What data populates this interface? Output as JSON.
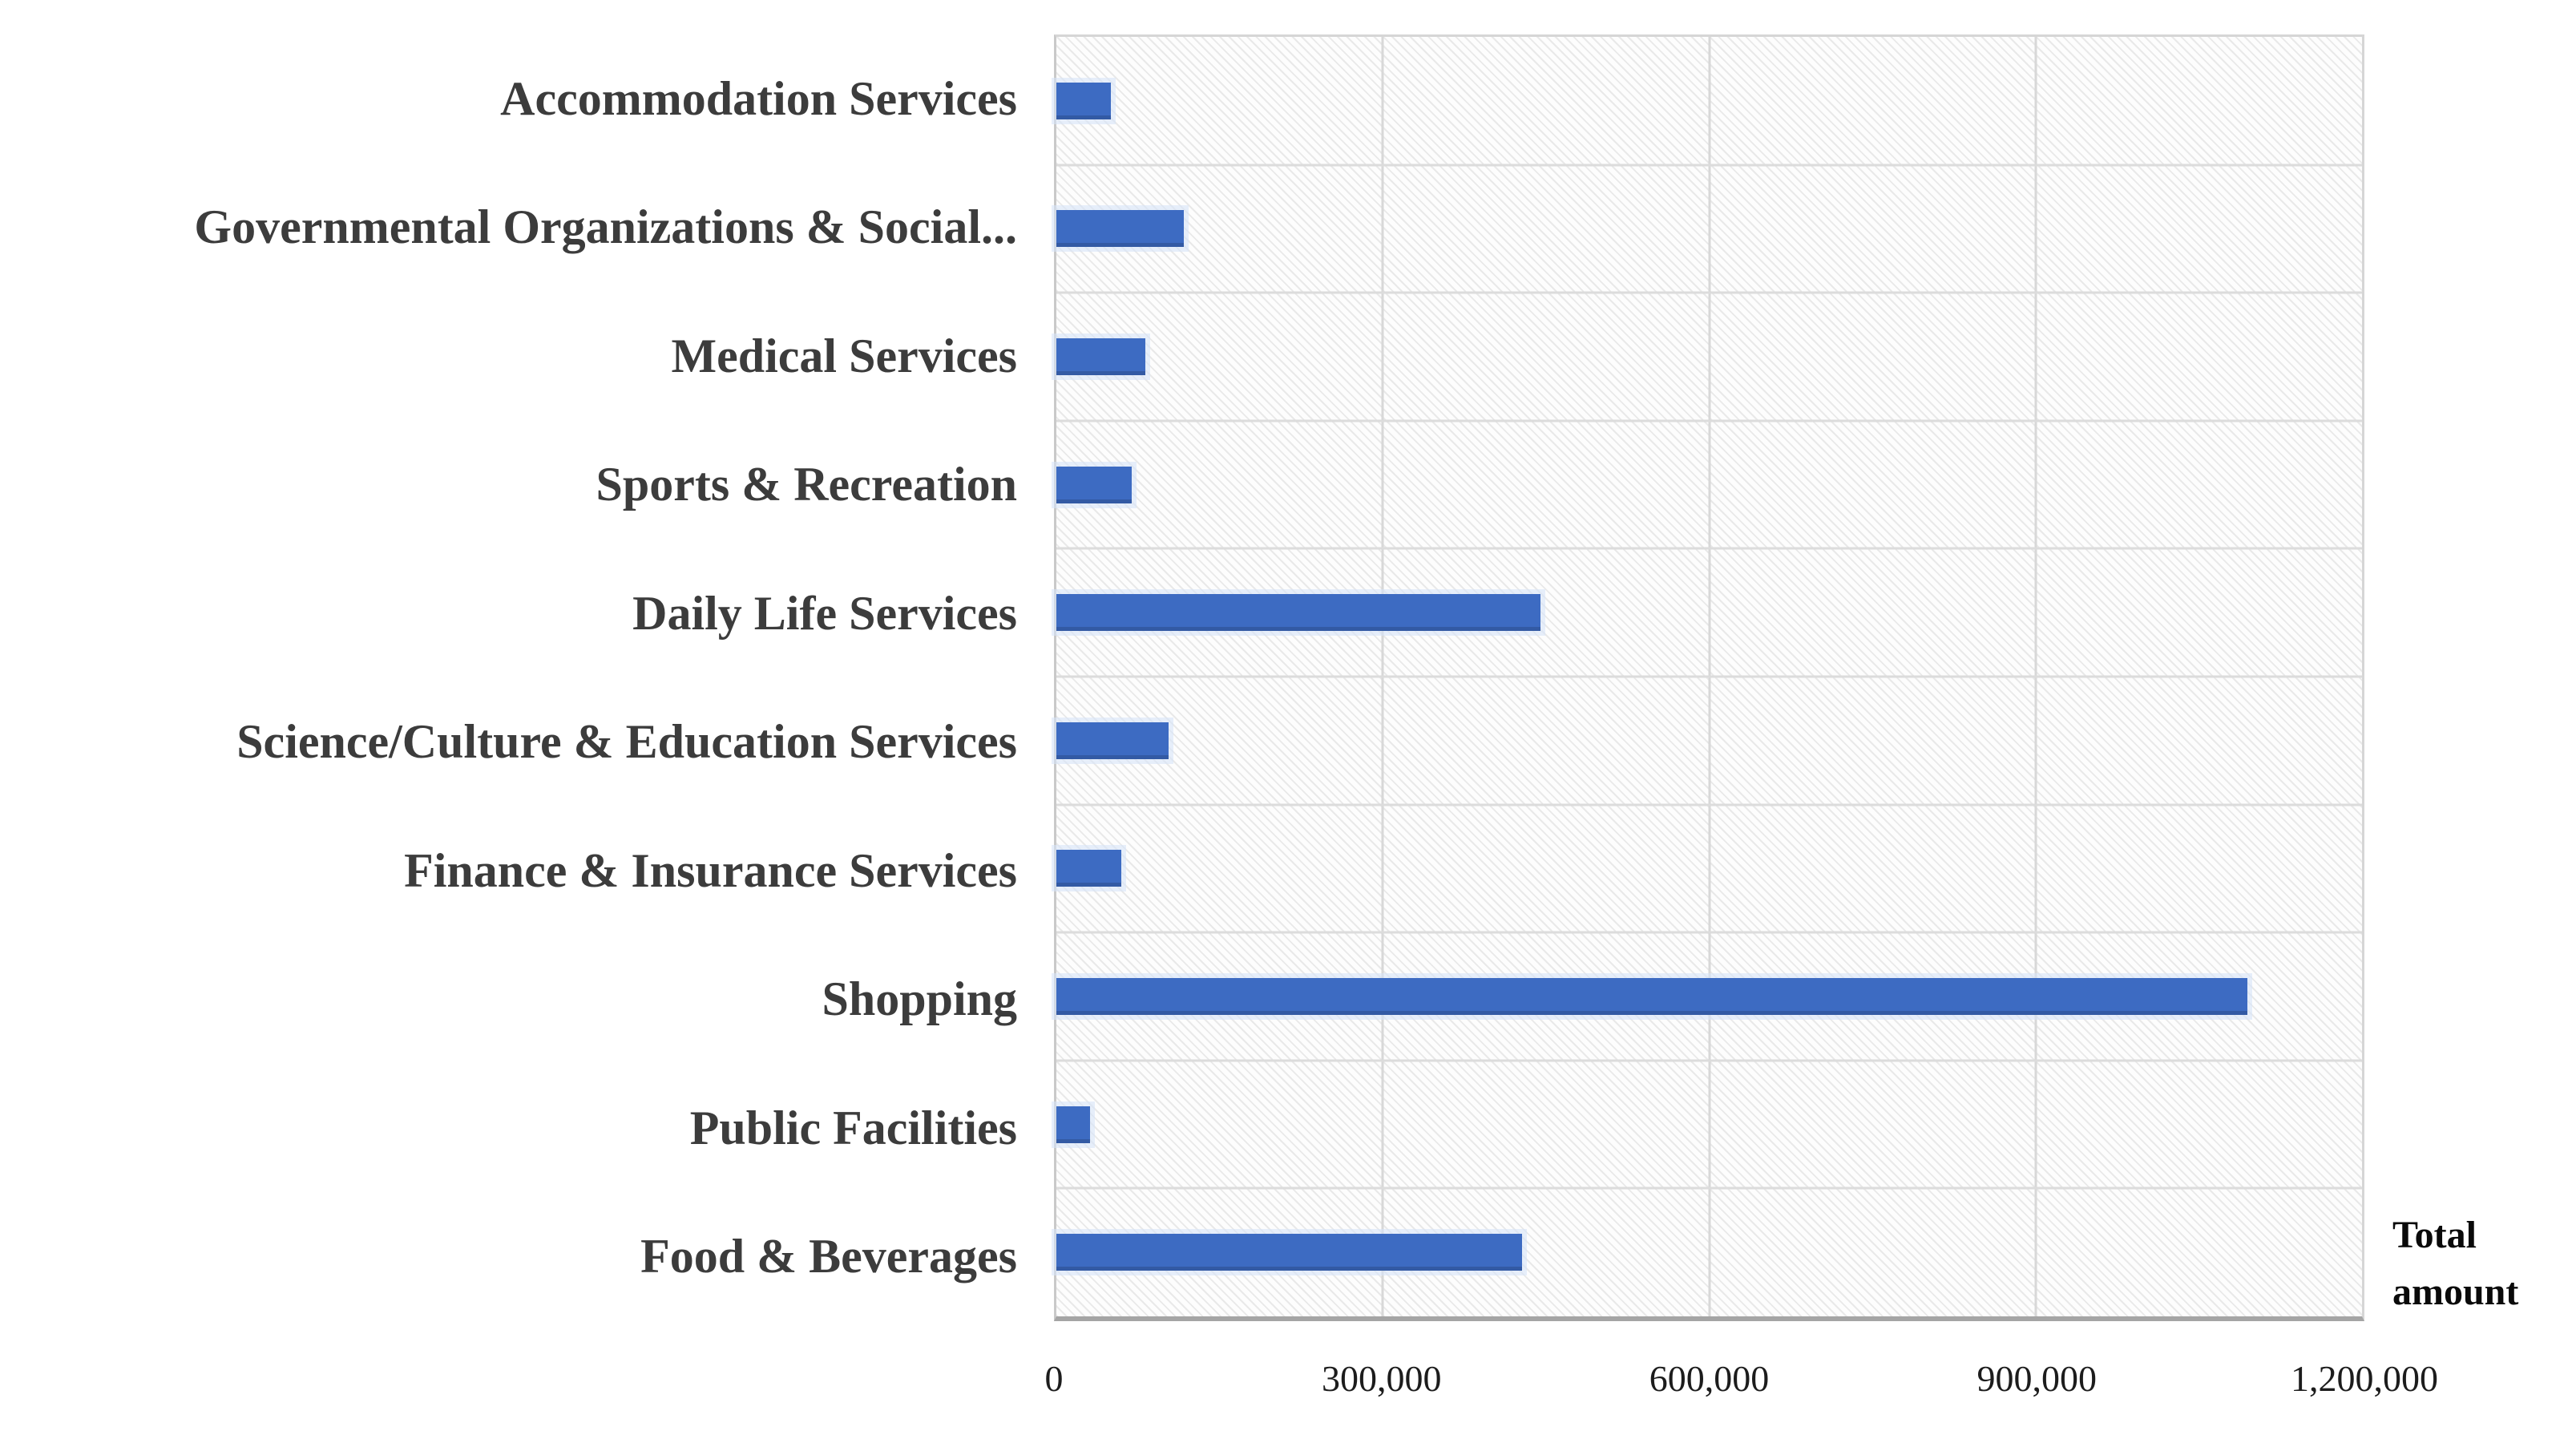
{
  "chart_data": {
    "type": "bar",
    "orientation": "horizontal",
    "title": "",
    "xlabel": "Total amount",
    "ylabel": "",
    "categories": [
      "Accommodation Services",
      "Governmental Organizations & Social...",
      "Medical Services",
      "Sports & Recreation",
      "Daily Life Services",
      "Science/Culture & Education Services",
      "Finance & Insurance Services",
      "Shopping",
      "Public Facilities",
      "Food & Beverages"
    ],
    "values": [
      50000,
      117000,
      82000,
      69000,
      445000,
      103000,
      60000,
      1095000,
      31000,
      428000
    ],
    "xlim": [
      0,
      1200000
    ],
    "x_ticks": [
      0,
      300000,
      600000,
      900000,
      1200000
    ],
    "x_tick_labels": [
      "0",
      "300,000",
      "600,000",
      "900,000",
      "1,200,000"
    ],
    "grid": true,
    "legend": false,
    "bar_color": "#3d6bc2",
    "plot_hatch": "diagonal",
    "gridline_color": "#d8d8d8"
  }
}
